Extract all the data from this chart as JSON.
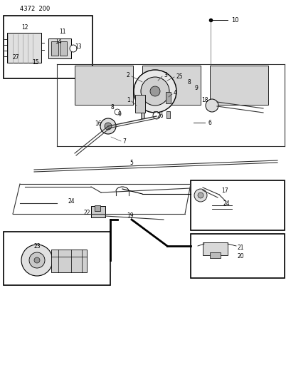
{
  "bg_color": "#ffffff",
  "line_color": "#333333",
  "label_color": "#000000",
  "header": "4372  200"
}
